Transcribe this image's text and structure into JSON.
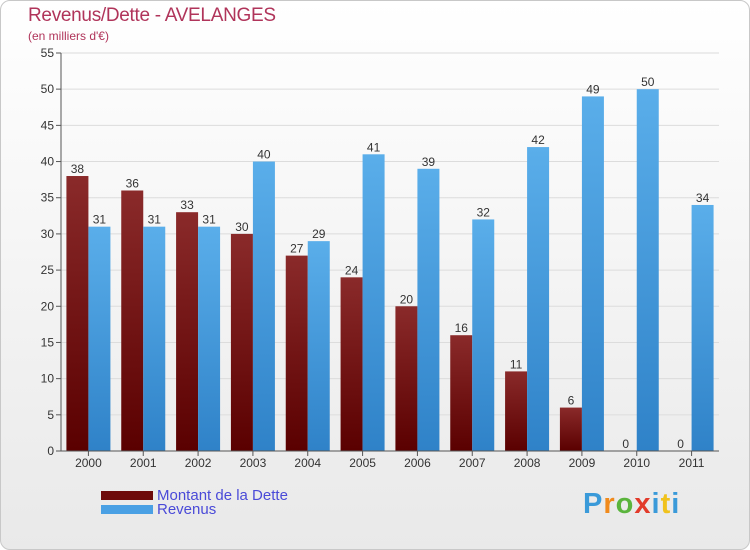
{
  "header": {
    "title": "Revenus/Dette - AVELANGES",
    "subtitle": "(en milliers d'€)"
  },
  "legend": {
    "items": [
      {
        "label": "Montant de la Dette",
        "color": "#6e0a0a"
      },
      {
        "label": "Revenus",
        "color": "#4aa0e4"
      }
    ]
  },
  "brand": {
    "letters": [
      "P",
      "r",
      "o",
      "x",
      "i",
      "t",
      "i"
    ],
    "colors": [
      "#3a9ad9",
      "#f08a1c",
      "#5ab43c",
      "#e23a2a",
      "#3a9ad9",
      "#f0c21c",
      "#3a9ad9"
    ]
  },
  "chart_data": {
    "type": "bar",
    "categories": [
      "2000",
      "2001",
      "2002",
      "2003",
      "2004",
      "2005",
      "2006",
      "2007",
      "2008",
      "2009",
      "2010",
      "2011"
    ],
    "series": [
      {
        "name": "Montant de la Dette",
        "values": [
          38,
          36,
          33,
          30,
          27,
          24,
          20,
          16,
          11,
          6,
          0,
          0
        ],
        "color": "#7a1515"
      },
      {
        "name": "Revenus",
        "values": [
          31,
          31,
          31,
          40,
          29,
          41,
          39,
          32,
          42,
          49,
          50,
          34
        ],
        "color": "#4aa0e4"
      }
    ],
    "ylim": [
      0,
      55
    ],
    "yticks": [
      0,
      5,
      10,
      15,
      20,
      25,
      30,
      35,
      40,
      45,
      50,
      55
    ],
    "grid": true
  }
}
